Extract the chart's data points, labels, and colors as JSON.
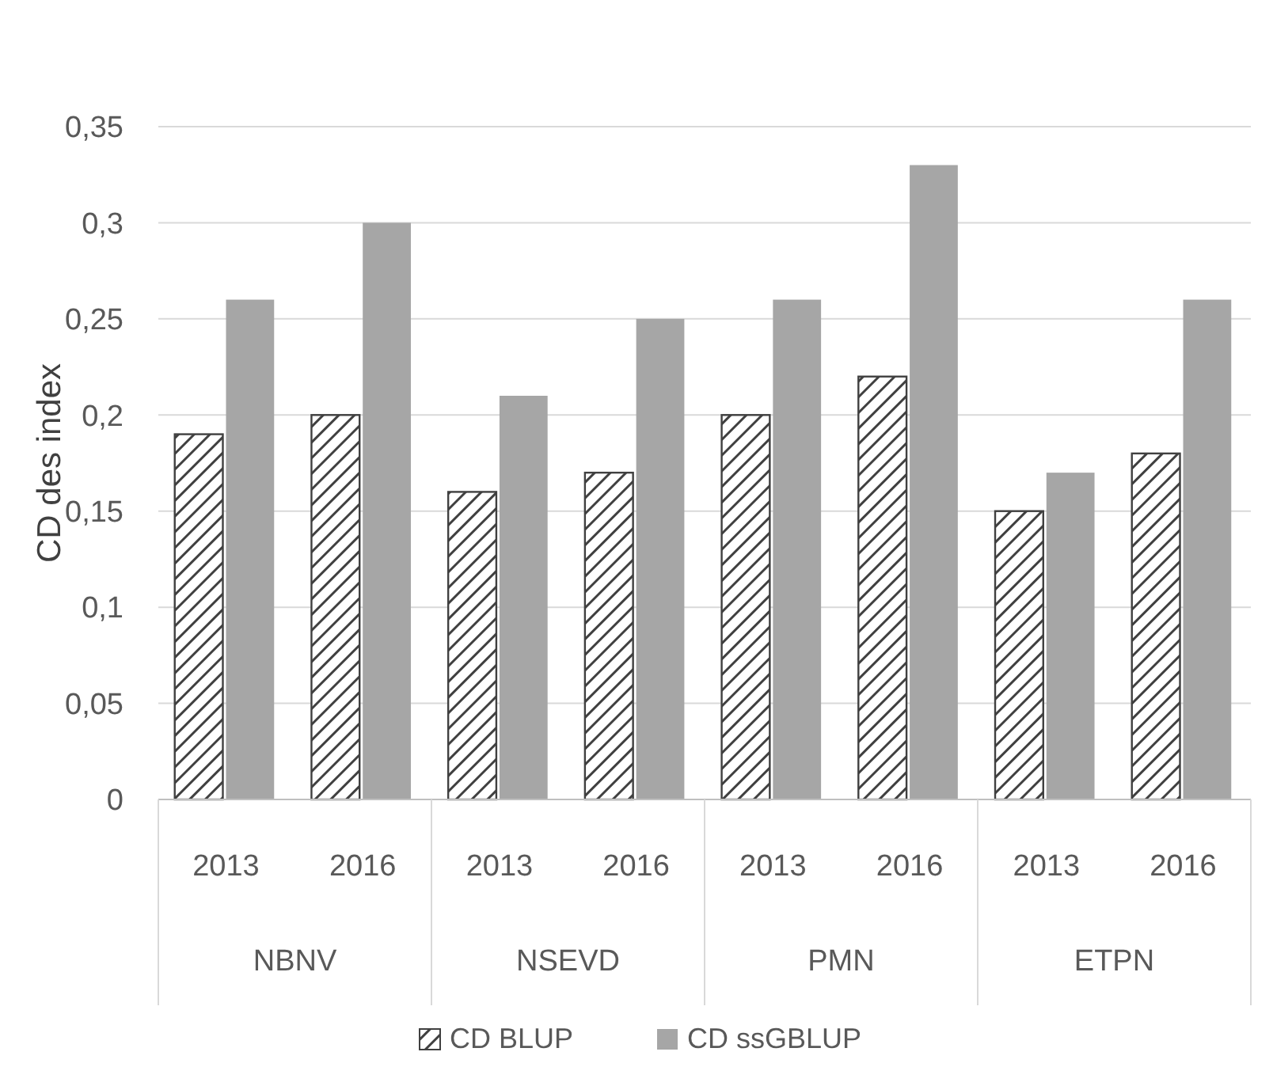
{
  "chart_data": {
    "type": "bar",
    "ylabel": "CD des index",
    "categories": [
      "2013",
      "2016",
      "2013",
      "2016",
      "2013",
      "2016",
      "2013",
      "2016"
    ],
    "annotations": [
      "NBNV",
      "NSEVD",
      "PMN",
      "ETPN"
    ],
    "series": [
      {
        "name": "CD BLUP",
        "color": "#404040",
        "values": [
          0.19,
          0.2,
          0.16,
          0.17,
          0.2,
          0.22,
          0.15,
          0.18
        ]
      },
      {
        "name": "CD ssGBLUP",
        "color": "#a6a6a6",
        "values": [
          0.26,
          0.3,
          0.21,
          0.25,
          0.26,
          0.33,
          0.17,
          0.26
        ]
      }
    ],
    "ylim": [
      0,
      0.35
    ],
    "yticks": [
      0,
      {
        "value": 0.05,
        "label": "0,05"
      },
      {
        "value": 0.1,
        "label": "0,1"
      },
      {
        "value": 0.15,
        "label": "0,15"
      },
      {
        "value": 0.2,
        "label": "0,2"
      },
      {
        "value": 0.25,
        "label": "0,25"
      },
      {
        "value": 0.3,
        "label": "0,3"
      },
      {
        "value": 0.35,
        "label": "0,35"
      }
    ],
    "grid": "y",
    "legend": "bottom"
  }
}
